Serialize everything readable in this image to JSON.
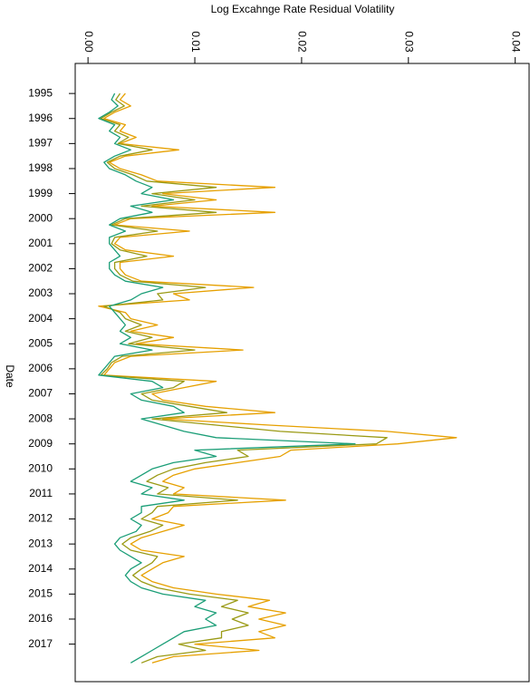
{
  "chart_data": {
    "type": "line",
    "title": "Log Excahnge Rate Residual Volatility",
    "ylabel": "Date",
    "orientation": "vertical-time",
    "x": [
      1995.0,
      1995.25,
      1995.5,
      1995.75,
      1996.0,
      1996.25,
      1996.5,
      1996.75,
      1997.0,
      1997.25,
      1997.5,
      1997.75,
      1998.0,
      1998.25,
      1998.5,
      1998.75,
      1999.0,
      1999.25,
      1999.5,
      1999.75,
      2000.0,
      2000.25,
      2000.5,
      2000.75,
      2001.0,
      2001.25,
      2001.5,
      2001.75,
      2002.0,
      2002.25,
      2002.5,
      2002.75,
      2003.0,
      2003.25,
      2003.5,
      2003.75,
      2004.0,
      2004.25,
      2004.5,
      2004.75,
      2005.0,
      2005.25,
      2005.5,
      2005.75,
      2006.0,
      2006.25,
      2006.5,
      2006.75,
      2007.0,
      2007.25,
      2007.5,
      2007.75,
      2008.0,
      2008.25,
      2008.5,
      2008.75,
      2009.0,
      2009.25,
      2009.5,
      2009.75,
      2010.0,
      2010.25,
      2010.5,
      2010.75,
      2011.0,
      2011.25,
      2011.5,
      2011.75,
      2012.0,
      2012.25,
      2012.5,
      2012.75,
      2013.0,
      2013.25,
      2013.5,
      2013.75,
      2014.0,
      2014.25,
      2014.5,
      2014.75,
      2015.0,
      2015.25,
      2015.5,
      2015.75,
      2016.0,
      2016.25,
      2016.5,
      2016.75,
      2017.0,
      2017.25,
      2017.5,
      2017.75
    ],
    "series": [
      {
        "color": "#e6a000",
        "values": [
          0.0035,
          0.003,
          0.004,
          0.0025,
          0.0015,
          0.0035,
          0.003,
          0.0045,
          0.003,
          0.0085,
          0.0035,
          0.002,
          0.003,
          0.005,
          0.0065,
          0.0175,
          0.007,
          0.012,
          0.006,
          0.0175,
          0.004,
          0.0025,
          0.0095,
          0.003,
          0.0025,
          0.0035,
          0.008,
          0.003,
          0.003,
          0.0035,
          0.005,
          0.0155,
          0.008,
          0.0095,
          0.001,
          0.0035,
          0.004,
          0.0065,
          0.004,
          0.008,
          0.0045,
          0.0145,
          0.004,
          0.0025,
          0.002,
          0.0015,
          0.012,
          0.009,
          0.006,
          0.007,
          0.011,
          0.0175,
          0.007,
          0.017,
          0.028,
          0.0345,
          0.029,
          0.019,
          0.018,
          0.014,
          0.01,
          0.008,
          0.007,
          0.009,
          0.008,
          0.0185,
          0.008,
          0.0075,
          0.006,
          0.009,
          0.007,
          0.005,
          0.004,
          0.005,
          0.009,
          0.007,
          0.006,
          0.005,
          0.006,
          0.008,
          0.012,
          0.017,
          0.015,
          0.0185,
          0.016,
          0.0185,
          0.016,
          0.0175,
          0.01,
          0.016,
          0.008,
          0.006
        ]
      },
      {
        "color": "#9a9a14",
        "values": [
          0.003,
          0.0026,
          0.0034,
          0.0022,
          0.0012,
          0.003,
          0.0025,
          0.0038,
          0.0028,
          0.006,
          0.003,
          0.0018,
          0.0025,
          0.0042,
          0.0055,
          0.012,
          0.006,
          0.01,
          0.005,
          0.012,
          0.0035,
          0.0022,
          0.0065,
          0.0025,
          0.0022,
          0.003,
          0.0055,
          0.0025,
          0.0025,
          0.003,
          0.0042,
          0.011,
          0.0065,
          0.007,
          0.0015,
          0.003,
          0.0035,
          0.005,
          0.0035,
          0.006,
          0.0038,
          0.01,
          0.0032,
          0.0022,
          0.0018,
          0.0012,
          0.009,
          0.008,
          0.005,
          0.006,
          0.0095,
          0.013,
          0.006,
          0.012,
          0.018,
          0.028,
          0.027,
          0.014,
          0.015,
          0.011,
          0.008,
          0.0065,
          0.0055,
          0.0075,
          0.0065,
          0.014,
          0.0065,
          0.006,
          0.005,
          0.007,
          0.0058,
          0.004,
          0.0032,
          0.004,
          0.0065,
          0.006,
          0.005,
          0.0042,
          0.005,
          0.0065,
          0.0095,
          0.014,
          0.0125,
          0.015,
          0.0135,
          0.015,
          0.0125,
          0.0125,
          0.0085,
          0.011,
          0.0065,
          0.005
        ]
      },
      {
        "color": "#1b9e77",
        "values": [
          0.0025,
          0.0022,
          0.0028,
          0.002,
          0.001,
          0.0025,
          0.002,
          0.003,
          0.0025,
          0.004,
          0.0025,
          0.0015,
          0.002,
          0.0035,
          0.0045,
          0.006,
          0.005,
          0.008,
          0.004,
          0.006,
          0.003,
          0.002,
          0.0035,
          0.002,
          0.002,
          0.0025,
          0.003,
          0.002,
          0.002,
          0.0025,
          0.0035,
          0.007,
          0.005,
          0.004,
          0.002,
          0.0025,
          0.003,
          0.0035,
          0.003,
          0.004,
          0.003,
          0.006,
          0.0025,
          0.002,
          0.0015,
          0.001,
          0.006,
          0.007,
          0.004,
          0.005,
          0.008,
          0.009,
          0.005,
          0.007,
          0.009,
          0.012,
          0.025,
          0.01,
          0.012,
          0.008,
          0.006,
          0.005,
          0.004,
          0.006,
          0.005,
          0.009,
          0.005,
          0.005,
          0.004,
          0.005,
          0.0045,
          0.003,
          0.0025,
          0.003,
          0.004,
          0.005,
          0.004,
          0.0035,
          0.004,
          0.005,
          0.007,
          0.011,
          0.01,
          0.012,
          0.011,
          0.012,
          0.009,
          0.008,
          0.007,
          0.006,
          0.005,
          0.004
        ]
      }
    ],
    "xlim": [
      -0.0012,
      0.0413
    ],
    "xticks": [
      {
        "value": 0,
        "label": "0.00"
      },
      0.01,
      0.02,
      0.03,
      0.04
    ],
    "ylim": [
      1993.8,
      2018.5
    ],
    "yticks": [
      1995,
      1996,
      1997,
      1998,
      1999,
      2000,
      2001,
      2002,
      2003,
      2004,
      2005,
      2006,
      2007,
      2008,
      2009,
      2010,
      2011,
      2012,
      2013,
      2014,
      2015,
      2016,
      2017
    ]
  }
}
